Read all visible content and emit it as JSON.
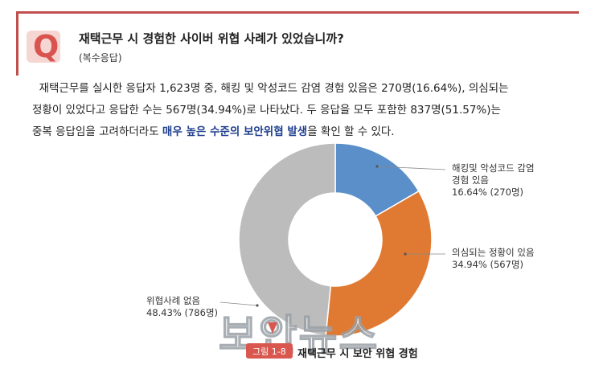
{
  "header": {
    "badge": "Q",
    "question": "재택근무 시 경험한 사이버 위협 사례가 있었습니까?",
    "subtitle": "(복수응답)"
  },
  "summary": {
    "line1": "재택근무를 실시한 응답자 1,623명 중, 해킹 및 악성코드 감염 경험 있음은  270명(16.64%), 의심되는",
    "line2": "정황이 있었다고 응답한 수는 567명(34.94%)로 나타났다. 두 응답을 모두 포함한  837명(51.57%)는",
    "line3_before": "중복 응답임을 고려하더라도 ",
    "line3_highlight": "매우 높은 수준의 보안위협 발생",
    "line3_after": "을 확인 할 수 있다."
  },
  "chart_data": {
    "type": "pie",
    "donut": true,
    "slices": [
      {
        "label_lines": [
          "해킹및 악성코드 감염",
          "경험 있음",
          "16.64% (270명)"
        ],
        "value": 16.64,
        "count": 270,
        "color": "#5b8fc9"
      },
      {
        "label_lines": [
          "의심되는 정황이 있음",
          "34.94% (567명)"
        ],
        "value": 34.94,
        "count": 567,
        "color": "#e07a32"
      },
      {
        "label_lines": [
          "위협사례 없음",
          "48.43% (786명)"
        ],
        "value": 48.43,
        "count": 786,
        "color": "#bcbcbc"
      }
    ]
  },
  "caption": {
    "tag": "그림 1-8",
    "text": "재택근무 시 보안 위협 경험"
  },
  "watermark": "보안뉴스"
}
